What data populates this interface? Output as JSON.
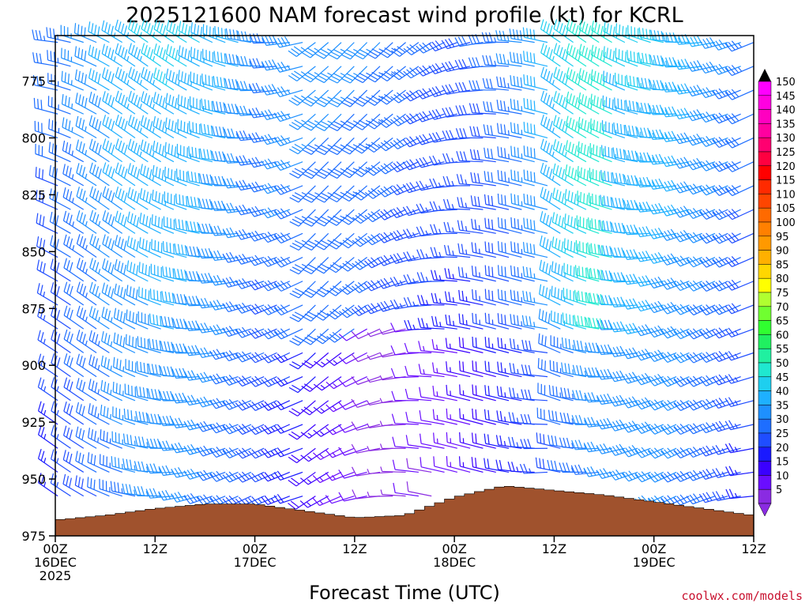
{
  "chart_data": {
    "type": "wind-profile",
    "title": "2025121600 NAM forecast wind profile (kt) for KCRL",
    "xlabel": "Forecast Time (UTC)",
    "ylabel": "",
    "y_ticks": [
      775,
      800,
      825,
      850,
      875,
      900,
      925,
      950,
      975
    ],
    "ylim": [
      755,
      975
    ],
    "x_hours": [
      0,
      84
    ],
    "x_ticks": [
      {
        "hour": 0,
        "line1": "00Z",
        "line2": "16DEC",
        "line3": "2025"
      },
      {
        "hour": 12,
        "line1": "12Z",
        "line2": "",
        "line3": ""
      },
      {
        "hour": 24,
        "line1": "00Z",
        "line2": "17DEC",
        "line3": ""
      },
      {
        "hour": 36,
        "line1": "12Z",
        "line2": "",
        "line3": ""
      },
      {
        "hour": 48,
        "line1": "00Z",
        "line2": "18DEC",
        "line3": ""
      },
      {
        "hour": 60,
        "line1": "12Z",
        "line2": "",
        "line3": ""
      },
      {
        "hour": 72,
        "line1": "00Z",
        "line2": "19DEC",
        "line3": ""
      },
      {
        "hour": 84,
        "line1": "12Z",
        "line2": "",
        "line3": ""
      }
    ],
    "colorbar": {
      "levels": [
        5,
        10,
        15,
        20,
        25,
        30,
        35,
        40,
        45,
        50,
        55,
        60,
        65,
        70,
        75,
        80,
        85,
        90,
        95,
        100,
        105,
        110,
        115,
        120,
        125,
        130,
        135,
        140,
        145,
        150
      ],
      "colors": [
        "#8a2be2",
        "#6a0dff",
        "#3a00ff",
        "#1a1aff",
        "#1f4dff",
        "#1e6eff",
        "#1e90ff",
        "#1eb0ff",
        "#1ecfef",
        "#1fe8d0",
        "#20f0a0",
        "#20f060",
        "#30ff30",
        "#70ff30",
        "#b0ff30",
        "#ffff00",
        "#ffd700",
        "#ffb000",
        "#ff9900",
        "#ff8000",
        "#ff6a00",
        "#ff4500",
        "#ff2a00",
        "#ff0000",
        "#ff0040",
        "#ff0070",
        "#ff00a0",
        "#ff00c0",
        "#ff00e0",
        "#ff00ff"
      ]
    },
    "terrain_color": "#a0522d",
    "terrain_surface_hpa": [
      {
        "hour": 0,
        "p": 968
      },
      {
        "hour": 6,
        "p": 966
      },
      {
        "hour": 12,
        "p": 963
      },
      {
        "hour": 18,
        "p": 961
      },
      {
        "hour": 24,
        "p": 961
      },
      {
        "hour": 30,
        "p": 964
      },
      {
        "hour": 36,
        "p": 967
      },
      {
        "hour": 42,
        "p": 966
      },
      {
        "hour": 48,
        "p": 958
      },
      {
        "hour": 54,
        "p": 953
      },
      {
        "hour": 60,
        "p": 955
      },
      {
        "hour": 66,
        "p": 957
      },
      {
        "hour": 72,
        "p": 960
      },
      {
        "hour": 78,
        "p": 963
      },
      {
        "hour": 84,
        "p": 966
      }
    ],
    "wind_field_description": "Wind barbs every ~1.5 h and ~10 hPa; mostly 20-35 kt westerly/southwesterly at low levels, 35-50 kt northwesterly aloft on 17-18 Dec"
  },
  "credit": "coolwx.com/models"
}
